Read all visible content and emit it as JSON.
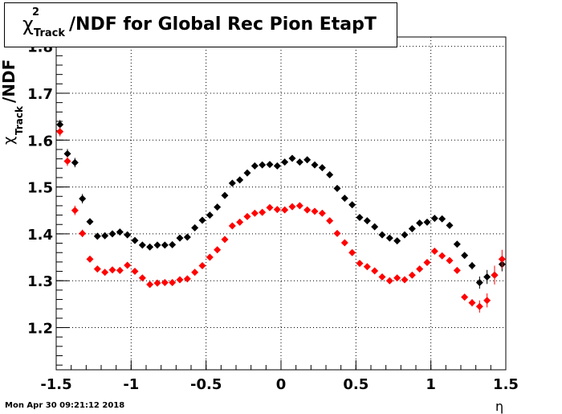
{
  "title": {
    "chi": "χ",
    "sup": "2",
    "sub": "Track",
    "rest": "/NDF for Global Rec Pion EtapT"
  },
  "ylabel": {
    "chi": "χ",
    "sup": "2",
    "sub": "Track",
    "rest": "/NDF"
  },
  "xlabel": "η",
  "timestamp": "Mon Apr 30 09:21:12 2018",
  "chart_data": {
    "type": "scatter",
    "xlim": [
      -1.5,
      1.5
    ],
    "ylim": [
      1.11,
      1.82
    ],
    "xticks": [
      "-1.5",
      "-1",
      "-0.5",
      "0",
      "0.5",
      "1",
      "1.5"
    ],
    "yticks": [
      "1.2",
      "1.3",
      "1.4",
      "1.5",
      "1.6",
      "1.7",
      "1.8"
    ],
    "grid": true,
    "series": [
      {
        "color": "#000000",
        "x": [
          -1.475,
          -1.425,
          -1.375,
          -1.325,
          -1.275,
          -1.225,
          -1.175,
          -1.125,
          -1.075,
          -1.025,
          -0.975,
          -0.925,
          -0.875,
          -0.825,
          -0.775,
          -0.725,
          -0.675,
          -0.625,
          -0.575,
          -0.525,
          -0.475,
          -0.425,
          -0.375,
          -0.325,
          -0.275,
          -0.225,
          -0.175,
          -0.125,
          -0.075,
          -0.025,
          0.025,
          0.075,
          0.125,
          0.175,
          0.225,
          0.275,
          0.325,
          0.375,
          0.425,
          0.475,
          0.525,
          0.575,
          0.625,
          0.675,
          0.725,
          0.775,
          0.825,
          0.875,
          0.925,
          0.975,
          1.025,
          1.075,
          1.125,
          1.175,
          1.225,
          1.275,
          1.325,
          1.375,
          1.425,
          1.475
        ],
        "y": [
          1.633,
          1.571,
          1.552,
          1.475,
          1.426,
          1.395,
          1.396,
          1.4,
          1.404,
          1.398,
          1.386,
          1.376,
          1.372,
          1.376,
          1.376,
          1.377,
          1.391,
          1.393,
          1.413,
          1.429,
          1.44,
          1.457,
          1.482,
          1.508,
          1.515,
          1.53,
          1.545,
          1.547,
          1.548,
          1.545,
          1.553,
          1.561,
          1.553,
          1.558,
          1.547,
          1.541,
          1.526,
          1.497,
          1.476,
          1.462,
          1.435,
          1.428,
          1.415,
          1.398,
          1.391,
          1.385,
          1.398,
          1.411,
          1.423,
          1.425,
          1.433,
          1.432,
          1.418,
          1.378,
          1.354,
          1.332,
          1.296,
          1.308,
          1.312,
          1.335
        ],
        "err": [
          0.01,
          0.01,
          0.01,
          0.01,
          0.006,
          0.005,
          0.005,
          0.005,
          0.005,
          0.005,
          0.005,
          0.005,
          0.005,
          0.005,
          0.005,
          0.005,
          0.005,
          0.005,
          0.005,
          0.005,
          0.005,
          0.005,
          0.005,
          0.005,
          0.005,
          0.005,
          0.005,
          0.005,
          0.005,
          0.005,
          0.005,
          0.005,
          0.005,
          0.005,
          0.005,
          0.005,
          0.005,
          0.005,
          0.005,
          0.005,
          0.005,
          0.005,
          0.005,
          0.005,
          0.005,
          0.005,
          0.005,
          0.005,
          0.005,
          0.005,
          0.005,
          0.005,
          0.005,
          0.005,
          0.006,
          0.008,
          0.013,
          0.015,
          0.015,
          0.015
        ]
      },
      {
        "color": "#ff0000",
        "x": [
          -1.475,
          -1.425,
          -1.375,
          -1.325,
          -1.275,
          -1.225,
          -1.175,
          -1.125,
          -1.075,
          -1.025,
          -0.975,
          -0.925,
          -0.875,
          -0.825,
          -0.775,
          -0.725,
          -0.675,
          -0.625,
          -0.575,
          -0.525,
          -0.475,
          -0.425,
          -0.375,
          -0.325,
          -0.275,
          -0.225,
          -0.175,
          -0.125,
          -0.075,
          -0.025,
          0.025,
          0.075,
          0.125,
          0.175,
          0.225,
          0.275,
          0.325,
          0.375,
          0.425,
          0.475,
          0.525,
          0.575,
          0.625,
          0.675,
          0.725,
          0.775,
          0.825,
          0.875,
          0.925,
          0.975,
          1.025,
          1.075,
          1.125,
          1.175,
          1.225,
          1.275,
          1.325,
          1.375,
          1.425,
          1.475
        ],
        "y": [
          1.618,
          1.555,
          1.45,
          1.401,
          1.346,
          1.325,
          1.318,
          1.323,
          1.322,
          1.333,
          1.32,
          1.306,
          1.292,
          1.295,
          1.296,
          1.296,
          1.302,
          1.304,
          1.318,
          1.332,
          1.35,
          1.366,
          1.388,
          1.417,
          1.425,
          1.437,
          1.444,
          1.446,
          1.456,
          1.452,
          1.451,
          1.458,
          1.46,
          1.451,
          1.448,
          1.444,
          1.428,
          1.401,
          1.381,
          1.36,
          1.337,
          1.33,
          1.321,
          1.308,
          1.3,
          1.306,
          1.302,
          1.312,
          1.325,
          1.339,
          1.363,
          1.353,
          1.343,
          1.322,
          1.265,
          1.253,
          1.245,
          1.258,
          1.312,
          1.346
        ],
        "err": [
          0.01,
          0.01,
          0.01,
          0.008,
          0.006,
          0.005,
          0.005,
          0.005,
          0.005,
          0.005,
          0.005,
          0.005,
          0.005,
          0.005,
          0.005,
          0.005,
          0.005,
          0.005,
          0.005,
          0.005,
          0.005,
          0.005,
          0.005,
          0.005,
          0.005,
          0.005,
          0.005,
          0.005,
          0.005,
          0.005,
          0.005,
          0.005,
          0.005,
          0.005,
          0.005,
          0.005,
          0.005,
          0.005,
          0.005,
          0.005,
          0.005,
          0.005,
          0.005,
          0.005,
          0.005,
          0.005,
          0.005,
          0.005,
          0.005,
          0.005,
          0.005,
          0.005,
          0.005,
          0.005,
          0.006,
          0.008,
          0.013,
          0.015,
          0.02,
          0.02
        ]
      }
    ]
  }
}
